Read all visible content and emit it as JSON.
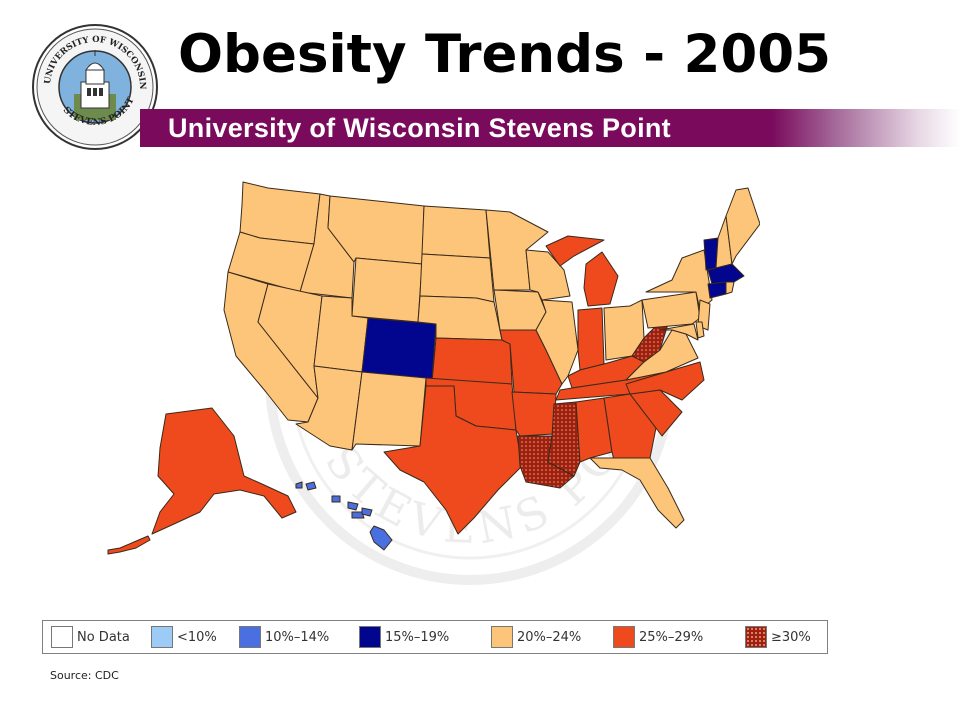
{
  "header": {
    "title": "Obesity Trends - 2005",
    "subtitle": "University of Wisconsin Stevens Point",
    "seal_text_top": "UNIVERSITY OF WISCONSIN",
    "seal_text_bottom": "STEVENS POINT"
  },
  "legend": {
    "items": [
      {
        "label": "No Data",
        "color": "#ffffff",
        "pattern": "none"
      },
      {
        "label": "<10%",
        "color": "#9ccbf5",
        "pattern": "none"
      },
      {
        "label": "10%–14%",
        "color": "#4a6fe0",
        "pattern": "none"
      },
      {
        "label": "15%–19%",
        "color": "#02068f",
        "pattern": "none"
      },
      {
        "label": "20%–24%",
        "color": "#fdc57a",
        "pattern": "none"
      },
      {
        "label": "25%–29%",
        "color": "#ee4a1e",
        "pattern": "none"
      },
      {
        "label": "≥30%",
        "color": "#a0200e",
        "pattern": "dots"
      }
    ]
  },
  "map": {
    "category_colors": {
      "15-19": "#02068f",
      "20-24": "#fdc57a",
      "25-29": "#ee4a1e",
      "30plus": "#a0200e"
    },
    "states_15_19": [
      "Colorado",
      "Vermont",
      "Massachusetts",
      "Connecticut"
    ],
    "states_20_24": [
      "Washington",
      "Oregon",
      "California",
      "Idaho",
      "Nevada",
      "Montana",
      "Wyoming",
      "Utah",
      "Arizona",
      "New Mexico",
      "North Dakota",
      "South Dakota",
      "Nebraska",
      "Minnesota",
      "Iowa",
      "Wisconsin",
      "Illinois",
      "Ohio",
      "Pennsylvania",
      "New York",
      "New Jersey",
      "Maryland",
      "Virginia",
      "New Hampshire",
      "Maine",
      "Rhode Island",
      "Delaware",
      "Florida"
    ],
    "states_25_29": [
      "Kansas",
      "Oklahoma",
      "Texas",
      "Missouri",
      "Arkansas",
      "Michigan",
      "Indiana",
      "Kentucky",
      "Tennessee",
      "Alabama",
      "Georgia",
      "South Carolina",
      "North Carolina",
      "Alaska"
    ],
    "states_30_plus": [
      "Mississippi",
      "Louisiana",
      "West Virginia"
    ],
    "states_10_14": [
      "Hawaii"
    ]
  },
  "watermark": {
    "text_bottom": "STEVENS POINT"
  },
  "source": "Source: CDC"
}
